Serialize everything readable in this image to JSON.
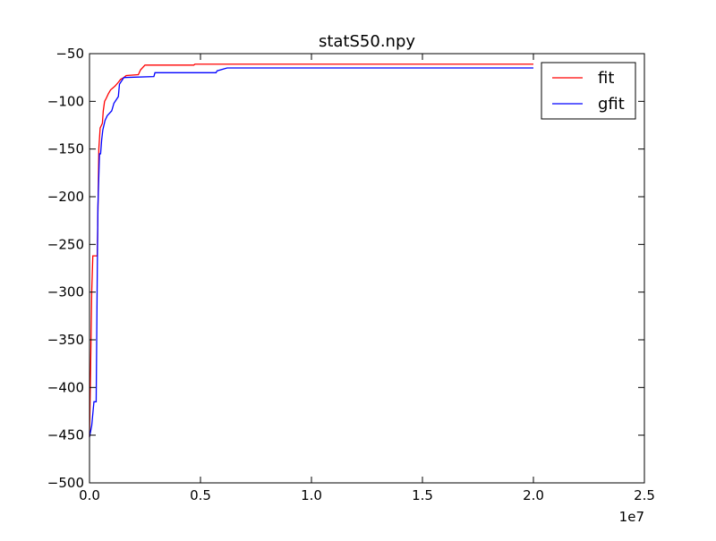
{
  "chart_data": {
    "type": "line",
    "title": "statS50.npy",
    "xlabel": "",
    "ylabel": "",
    "xlim": [
      0,
      25000000
    ],
    "ylim": [
      -500,
      -50
    ],
    "x_offset_text": "1e7",
    "x_tick_values": [
      0,
      5000000,
      10000000,
      15000000,
      20000000,
      25000000
    ],
    "x_tick_labels": [
      "0.0",
      "0.5",
      "1.0",
      "1.5",
      "2.0",
      "2.5"
    ],
    "y_tick_values": [
      -500,
      -450,
      -400,
      -350,
      -300,
      -250,
      -200,
      -150,
      -100,
      -50
    ],
    "y_tick_labels": [
      "−500",
      "−450",
      "−400",
      "−350",
      "−300",
      "−250",
      "−200",
      "−150",
      "−100",
      "−50"
    ],
    "grid": false,
    "legend_position": "top-right",
    "series": [
      {
        "name": "fit",
        "color": "#ff0000",
        "points": [
          [
            0,
            -452
          ],
          [
            50000,
            -380
          ],
          [
            100000,
            -300
          ],
          [
            150000,
            -262
          ],
          [
            350000,
            -262
          ],
          [
            380000,
            -215
          ],
          [
            420000,
            -150
          ],
          [
            480000,
            -128
          ],
          [
            580000,
            -123
          ],
          [
            620000,
            -110
          ],
          [
            680000,
            -100
          ],
          [
            750000,
            -97
          ],
          [
            850000,
            -92
          ],
          [
            950000,
            -88
          ],
          [
            1150000,
            -84
          ],
          [
            1300000,
            -80
          ],
          [
            1400000,
            -77
          ],
          [
            1550000,
            -75
          ],
          [
            1650000,
            -73
          ],
          [
            2200000,
            -72
          ],
          [
            2300000,
            -67
          ],
          [
            2500000,
            -62
          ],
          [
            4700000,
            -62
          ],
          [
            4750000,
            -61
          ],
          [
            20000000,
            -61
          ]
        ]
      },
      {
        "name": "gfit",
        "color": "#0000ff",
        "points": [
          [
            0,
            -452
          ],
          [
            100000,
            -440
          ],
          [
            200000,
            -415
          ],
          [
            300000,
            -415
          ],
          [
            350000,
            -280
          ],
          [
            380000,
            -210
          ],
          [
            450000,
            -155
          ],
          [
            500000,
            -155
          ],
          [
            550000,
            -140
          ],
          [
            600000,
            -130
          ],
          [
            700000,
            -120
          ],
          [
            800000,
            -115
          ],
          [
            1000000,
            -110
          ],
          [
            1100000,
            -102
          ],
          [
            1300000,
            -95
          ],
          [
            1350000,
            -82
          ],
          [
            1550000,
            -75
          ],
          [
            2900000,
            -74
          ],
          [
            2950000,
            -70
          ],
          [
            5700000,
            -70
          ],
          [
            5750000,
            -68
          ],
          [
            6200000,
            -65
          ],
          [
            20000000,
            -65
          ]
        ]
      }
    ]
  }
}
